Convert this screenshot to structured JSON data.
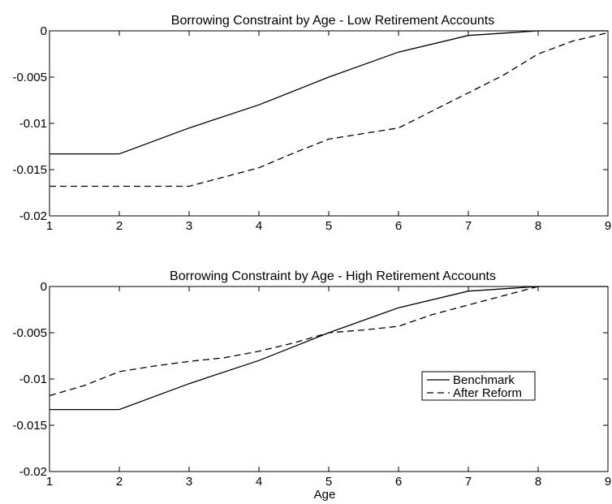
{
  "chart_data": [
    {
      "type": "line",
      "title": "Borrowing Constraint by Age - Low Retirement Accounts",
      "xlabel": "",
      "ylabel": "",
      "xlim": [
        1,
        9
      ],
      "ylim": [
        -0.02,
        0
      ],
      "xticks": [
        "1",
        "2",
        "3",
        "4",
        "5",
        "6",
        "7",
        "8",
        "9"
      ],
      "yticks": [
        "0",
        "-0.005",
        "-0.01",
        "-0.015",
        "-0.02"
      ],
      "grid": false,
      "series": [
        {
          "style": "solid",
          "x": [
            1,
            2,
            3,
            4,
            5,
            6,
            7,
            8,
            9
          ],
          "y": [
            -0.0133,
            -0.0133,
            -0.0105,
            -0.008,
            -0.005,
            -0.0023,
            -0.0005,
            0.0,
            0.0
          ]
        },
        {
          "style": "dashed",
          "x": [
            1,
            2,
            3,
            4,
            4.5,
            5,
            5.5,
            6,
            6.5,
            7,
            7.5,
            8,
            8.5,
            9
          ],
          "y": [
            -0.0168,
            -0.0168,
            -0.0168,
            -0.0148,
            -0.0132,
            -0.0117,
            -0.0111,
            -0.0105,
            -0.0086,
            -0.0067,
            -0.0048,
            -0.0025,
            -0.0011,
            -0.0002
          ]
        }
      ]
    },
    {
      "type": "line",
      "title": "Borrowing Constraint by Age - High Retirement Accounts",
      "xlabel": "Age",
      "ylabel": "",
      "xlim": [
        1,
        9
      ],
      "ylim": [
        -0.02,
        0
      ],
      "xticks": [
        "1",
        "2",
        "3",
        "4",
        "5",
        "6",
        "7",
        "8",
        "9"
      ],
      "yticks": [
        "0",
        "-0.005",
        "-0.01",
        "-0.015",
        "-0.02"
      ],
      "grid": false,
      "legend": "center-right",
      "series": [
        {
          "name": "Benchmark",
          "style": "solid",
          "x": [
            1,
            2,
            3,
            4,
            5,
            6,
            7,
            8,
            9
          ],
          "y": [
            -0.0133,
            -0.0133,
            -0.0105,
            -0.008,
            -0.005,
            -0.0023,
            -0.0005,
            0.0,
            0.0
          ]
        },
        {
          "name": "After Reform",
          "style": "dashed",
          "x": [
            1,
            1.5,
            2,
            2.5,
            3,
            3.5,
            4,
            4.5,
            5,
            5.5,
            6,
            6.5,
            7,
            7.5,
            8
          ],
          "y": [
            -0.0118,
            -0.0107,
            -0.0092,
            -0.0086,
            -0.0081,
            -0.0077,
            -0.007,
            -0.0061,
            -0.005,
            -0.0047,
            -0.0043,
            -0.003,
            -0.002,
            -0.001,
            0.0
          ]
        }
      ]
    }
  ]
}
